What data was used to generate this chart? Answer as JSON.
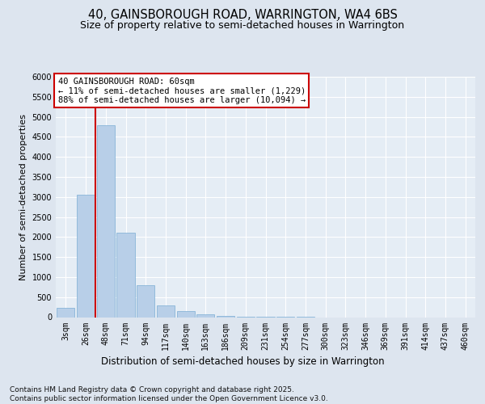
{
  "title_line1": "40, GAINSBOROUGH ROAD, WARRINGTON, WA4 6BS",
  "title_line2": "Size of property relative to semi-detached houses in Warrington",
  "xlabel": "Distribution of semi-detached houses by size in Warrington",
  "ylabel": "Number of semi-detached properties",
  "categories": [
    "3sqm",
    "26sqm",
    "48sqm",
    "71sqm",
    "94sqm",
    "117sqm",
    "140sqm",
    "163sqm",
    "186sqm",
    "209sqm",
    "231sqm",
    "254sqm",
    "277sqm",
    "300sqm",
    "323sqm",
    "346sqm",
    "369sqm",
    "391sqm",
    "414sqm",
    "437sqm",
    "460sqm"
  ],
  "values": [
    230,
    3050,
    4800,
    2100,
    800,
    290,
    150,
    80,
    30,
    10,
    5,
    2,
    1,
    0,
    0,
    0,
    0,
    0,
    0,
    0,
    0
  ],
  "bar_color": "#b8cfe8",
  "bar_edge_color": "#7aadd4",
  "vline_color": "#cc0000",
  "vline_pos": 1.5,
  "ylim": [
    0,
    6000
  ],
  "yticks": [
    0,
    500,
    1000,
    1500,
    2000,
    2500,
    3000,
    3500,
    4000,
    4500,
    5000,
    5500,
    6000
  ],
  "annotation_title": "40 GAINSBOROUGH ROAD: 60sqm",
  "annotation_line1": "← 11% of semi-detached houses are smaller (1,229)",
  "annotation_line2": "88% of semi-detached houses are larger (10,094) →",
  "footnote": "Contains HM Land Registry data © Crown copyright and database right 2025.\nContains public sector information licensed under the Open Government Licence v3.0.",
  "bg_color": "#dde5ef",
  "plot_bg_color": "#e5edf5",
  "grid_color": "#ffffff",
  "title_fontsize": 10.5,
  "subtitle_fontsize": 9,
  "tick_fontsize": 7,
  "ylabel_fontsize": 8,
  "xlabel_fontsize": 8.5,
  "ann_fontsize": 7.5,
  "footnote_fontsize": 6.5
}
